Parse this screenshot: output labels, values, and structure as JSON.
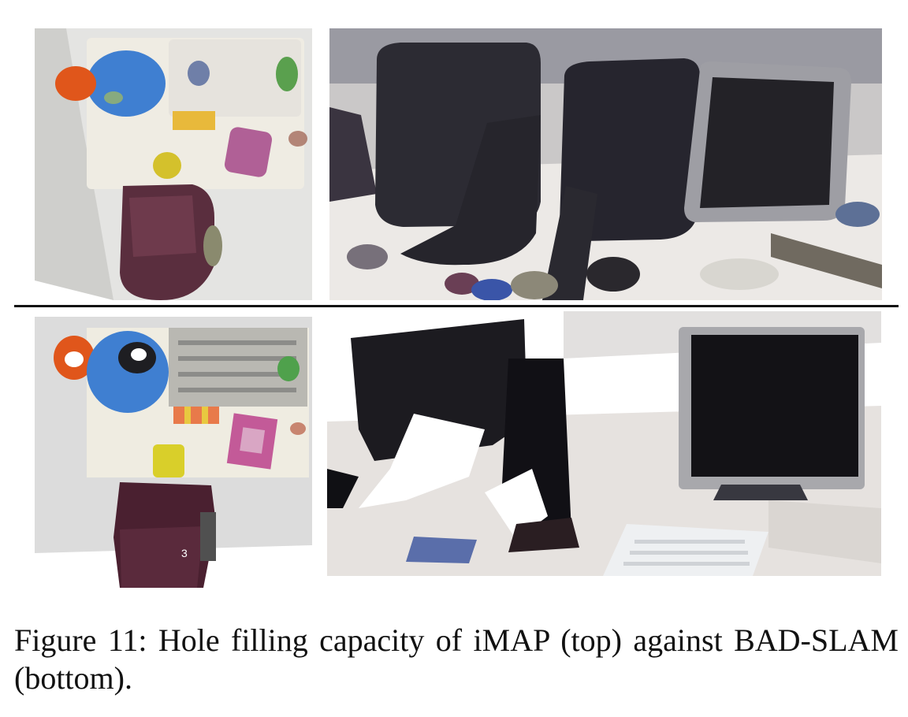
{
  "figure": {
    "caption": "Figure 11:  Hole filling capacity of iMAP (top) against BAD-SLAM (bottom).",
    "panels": [
      {
        "id": "top-left",
        "method": "iMAP",
        "view": "top-down desk reconstruction"
      },
      {
        "id": "top-right",
        "method": "iMAP",
        "view": "monitors close-up reconstruction"
      },
      {
        "id": "bottom-left",
        "method": "BAD-SLAM",
        "view": "top-down desk reconstruction"
      },
      {
        "id": "bottom-right",
        "method": "BAD-SLAM",
        "view": "monitors close-up reconstruction"
      }
    ],
    "marker_text": "3"
  }
}
